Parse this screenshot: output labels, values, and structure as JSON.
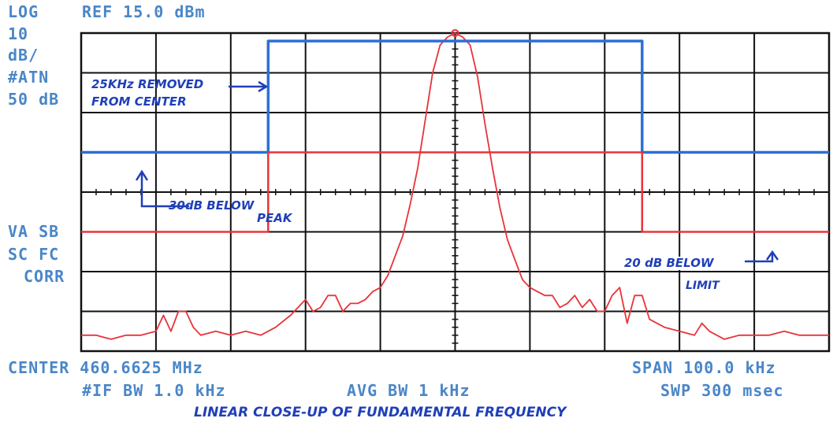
{
  "panel": {
    "scale_mode": "LOG",
    "ref_level": "REF 15.0 dBm",
    "scale_div_line1": "10",
    "scale_div_line2": "dB/",
    "atten_label": "#ATN",
    "atten_value": "50 dB",
    "status_line1": "VA SB",
    "status_line2": "SC FC",
    "status_line3": "CORR",
    "center": "CENTER 460.6625 MHz",
    "span": "SPAN 100.0 kHz",
    "if_bw": "#IF BW 1.0 kHz",
    "avg_bw": "AVG BW 1 kHz",
    "sweep": "SWP 300 msec"
  },
  "annotations": {
    "removed_line1": "25KHz REMOVED",
    "removed_line2": "FROM CENTER",
    "below_peak_line1": "30dB BELOW",
    "below_peak_line2": "PEAK",
    "below_limit_line1": "20 dB BELOW",
    "below_limit_line2": "LIMIT",
    "caption": "LINEAR CLOSE-UP OF FUNDAMENTAL FREQUENCY"
  },
  "colors": {
    "screen_text": "#4a86c8",
    "grid": "#111111",
    "trace": "#e8333a",
    "mask": "#2d6fd6",
    "limit": "#e8333a",
    "handwriting": "#1f3fb8"
  },
  "chart_data": {
    "type": "line",
    "x_unit": "kHz offset from center",
    "y_unit": "dB relative to reference level",
    "xlim": [
      -50,
      50
    ],
    "ylim": [
      -80,
      0
    ],
    "grid": true,
    "series": [
      {
        "name": "trace",
        "x": [
          -50,
          -48,
          -46,
          -44,
          -42,
          -40,
          -39,
          -38,
          -37,
          -36,
          -35,
          -34,
          -32,
          -30,
          -28,
          -26,
          -24,
          -22,
          -20,
          -19,
          -18,
          -17,
          -16,
          -15,
          -14,
          -13,
          -12,
          -11,
          -10,
          -9,
          -8,
          -7,
          -6,
          -5,
          -4,
          -3,
          -2,
          -1,
          0,
          1,
          2,
          3,
          4,
          5,
          6,
          7,
          8,
          9,
          10,
          11,
          12,
          13,
          14,
          15,
          16,
          17,
          18,
          19,
          20,
          21,
          22,
          23,
          24,
          25,
          26,
          28,
          30,
          32,
          33,
          34,
          35,
          36,
          38,
          40,
          42,
          44,
          46,
          48,
          50
        ],
        "y": [
          -76,
          -76,
          -77,
          -76,
          -76,
          -75,
          -71,
          -75,
          -70,
          -70,
          -74,
          -76,
          -75,
          -76,
          -75,
          -76,
          -74,
          -71,
          -67,
          -70,
          -69,
          -66,
          -66,
          -70,
          -68,
          -68,
          -67,
          -65,
          -64,
          -61,
          -56,
          -51,
          -43,
          -34,
          -22,
          -10,
          -3,
          -1,
          0,
          -1,
          -3,
          -11,
          -23,
          -34,
          -44,
          -52,
          -57,
          -62,
          -64,
          -65,
          -66,
          -66,
          -69,
          -68,
          -66,
          -69,
          -67,
          -70,
          -70,
          -66,
          -64,
          -73,
          -66,
          -66,
          -72,
          -74,
          -75,
          -76,
          -73,
          -75,
          -76,
          -77,
          -76,
          -76,
          -76,
          -75,
          -76,
          -76,
          -76
        ]
      },
      {
        "name": "mask",
        "x": [
          -50,
          -25,
          -25,
          25,
          25,
          50
        ],
        "y": [
          -30,
          -30,
          -2,
          -2,
          -30,
          -30
        ]
      },
      {
        "name": "limit",
        "x": [
          -50,
          -25,
          -25,
          25,
          25,
          50
        ],
        "y": [
          -50,
          -50,
          -30,
          -30,
          -50,
          -50
        ]
      }
    ],
    "marker": {
      "x": 0,
      "y": 0
    }
  }
}
